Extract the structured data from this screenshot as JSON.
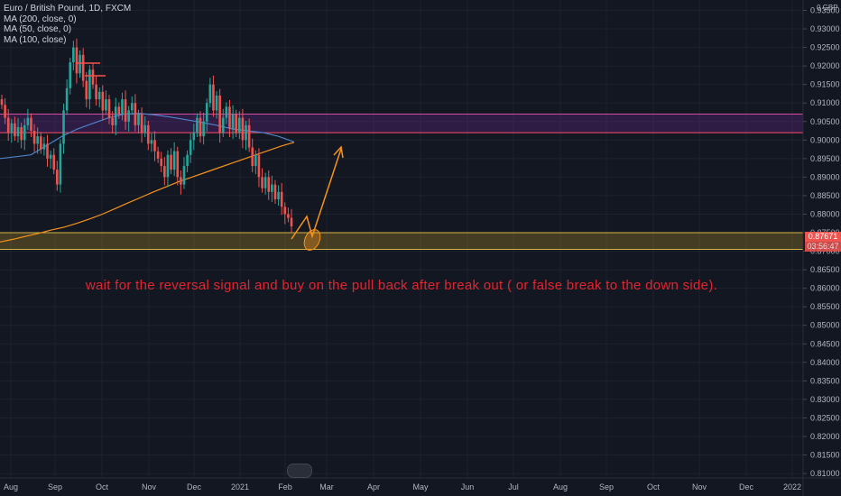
{
  "legend": {
    "symbol": "Euro / British Pound, 1D, FXCM",
    "ma200": "MA (200, close, 0)",
    "ma50": "MA (50, close, 0)",
    "ma100": "MA (100, close)"
  },
  "annotation": "wait for the reversal signal and buy on the pull back after break out ( or false break to the down side).",
  "currency": "0 GBP",
  "price_tags": {
    "last": "0.87671",
    "countdown": "03:56:47"
  },
  "colors": {
    "background": "#131722",
    "up": "#26a69a",
    "down": "#ef5350",
    "resistance_zone": "#7b2ca0",
    "support_zone": "#c9a227",
    "ma_orange": "#f7931a",
    "ma_blue": "#4b83c6",
    "annotation": "#e0262f"
  },
  "chart_data": {
    "type": "candlestick",
    "title": "Euro / British Pound, 1D, FXCM",
    "ylim": [
      0.81,
      0.93
    ],
    "yticks": [
      "0.81000",
      "0.81500",
      "0.82000",
      "0.82500",
      "0.83000",
      "0.83500",
      "0.84000",
      "0.84500",
      "0.85000",
      "0.85500",
      "0.86000",
      "0.86500",
      "0.87000",
      "0.87500",
      "0.88000",
      "0.88500",
      "0.89000",
      "0.89500",
      "0.90000",
      "0.90500",
      "0.91000",
      "0.91500",
      "0.92000",
      "0.92500",
      "0.93000",
      "0.93500"
    ],
    "xticks": [
      "Aug",
      "Sep",
      "Oct",
      "Nov",
      "Dec",
      "2021",
      "Feb",
      "Mar",
      "Apr",
      "May",
      "Jun",
      "Jul",
      "Aug",
      "Sep",
      "Oct",
      "Nov",
      "Dec",
      "2022"
    ],
    "series": [
      {
        "close": [
          0.9095,
          0.906,
          0.902,
          0.9045,
          0.901,
          0.9035,
          0.9,
          0.904,
          0.906,
          0.9025,
          0.899,
          0.901,
          0.8975,
          0.899,
          0.895,
          0.896,
          0.892,
          0.888,
          0.899,
          0.908,
          0.914,
          0.921,
          0.925,
          0.918,
          0.923,
          0.916,
          0.911,
          0.919,
          0.915,
          0.911,
          0.913,
          0.908,
          0.911,
          0.906,
          0.904,
          0.909,
          0.907,
          0.911,
          0.905,
          0.908,
          0.91,
          0.904,
          0.907,
          0.902,
          0.904,
          0.899,
          0.9,
          0.897,
          0.895,
          0.893,
          0.89,
          0.896,
          0.892,
          0.897,
          0.89,
          0.888,
          0.893,
          0.896,
          0.9,
          0.902,
          0.906,
          0.901,
          0.905,
          0.91,
          0.915,
          0.908,
          0.912,
          0.902,
          0.906,
          0.909,
          0.903,
          0.907,
          0.902,
          0.906,
          0.9,
          0.904,
          0.898,
          0.893,
          0.896,
          0.89,
          0.887,
          0.89,
          0.886,
          0.888,
          0.884,
          0.886,
          0.882,
          0.88,
          0.879,
          0.8767
        ]
      },
      {
        "name": "MA (200, close, 0)",
        "values": [
          0.8725,
          0.8732,
          0.874,
          0.8748,
          0.8757,
          0.8765,
          0.8775,
          0.8787,
          0.88,
          0.8815,
          0.883,
          0.8845,
          0.886,
          0.8874,
          0.8888,
          0.89,
          0.8912,
          0.8924,
          0.8936,
          0.8948,
          0.896,
          0.8972,
          0.8984,
          0.8994
        ]
      },
      {
        "name": "MA (100, close)",
        "values": [
          0.895,
          0.8955,
          0.896,
          0.8985,
          0.901,
          0.903,
          0.9045,
          0.906,
          0.907,
          0.9072,
          0.9068,
          0.9062,
          0.9055,
          0.9048,
          0.904,
          0.903,
          0.9025,
          0.902,
          0.901,
          0.8995
        ]
      }
    ],
    "zones": [
      {
        "name": "resistance",
        "from": 0.902,
        "to": 0.907
      },
      {
        "name": "support",
        "from": 0.8705,
        "to": 0.875
      }
    ]
  }
}
